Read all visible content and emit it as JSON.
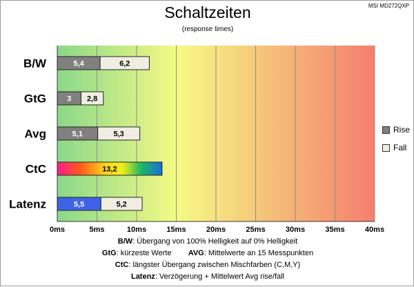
{
  "title": "Schaltzeiten",
  "subtitle": "(response times)",
  "model": "MSI MD272QXP",
  "colors": {
    "rise": "#808080",
    "fall": "#f0eee2",
    "latenz_rise": "#3f63e6",
    "background_gradient": [
      "#8ad88a",
      "#f6fa84",
      "#f57e6e"
    ]
  },
  "legend": [
    {
      "label": "Rise",
      "color": "#808080"
    },
    {
      "label": "Fall",
      "color": "#f0eee2"
    }
  ],
  "chart_data": {
    "type": "bar",
    "orientation": "horizontal",
    "stacked": true,
    "categories": [
      "B/W",
      "GtG",
      "Avg",
      "CtC",
      "Latenz"
    ],
    "series": [
      {
        "name": "Rise",
        "values": [
          5.4,
          3,
          5.1,
          13.2,
          5.5
        ]
      },
      {
        "name": "Fall",
        "values": [
          6.2,
          2.8,
          5.3,
          null,
          5.2
        ]
      }
    ],
    "xlim": [
      0,
      40
    ],
    "xticks": [
      "0ms",
      "5ms",
      "10ms",
      "15ms",
      "20ms",
      "25ms",
      "30ms",
      "35ms",
      "40ms"
    ],
    "xtick_values": [
      0,
      5,
      10,
      15,
      20,
      25,
      30,
      35,
      40
    ],
    "grid": true,
    "legend_position": "right"
  },
  "footnotes": [
    {
      "term": "B/W",
      "text": ":  Übergang von 100% Helligkeit auf 0% Helligkeit"
    },
    {
      "term": "GtG",
      "text": ": kürzeste  Werte",
      "term2": "AVG",
      "text2": ": Mittelwerte  an 15 Messpunkten"
    },
    {
      "term": "CtC",
      "text": ": längster Übergang  zwischen Mischfarben (C,M,Y)"
    },
    {
      "term": "Latenz",
      "text": ": Verzögerung  + Mittelwert Avg rise/fall"
    }
  ]
}
